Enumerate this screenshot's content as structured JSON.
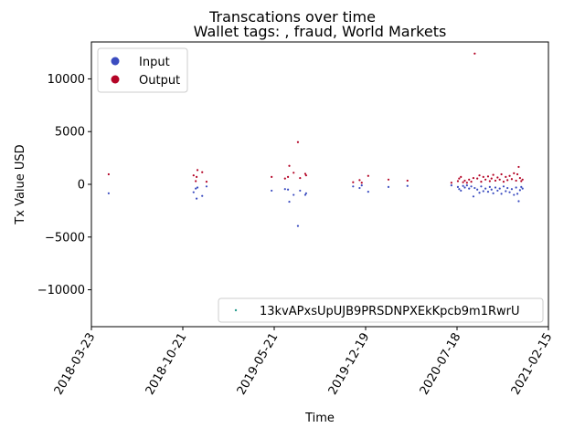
{
  "chart_data": {
    "type": "scatter",
    "suptitle": "Transcations over time",
    "title": "Wallet tags: , fraud, World Markets",
    "xlabel": "Time",
    "ylabel": "Tx Value USD",
    "x_ticks": [
      "2018-03-23",
      "2018-10-21",
      "2019-05-21",
      "2019-12-19",
      "2020-07-18",
      "2021-02-15"
    ],
    "xlim": [
      "2018-03-23",
      "2021-02-15"
    ],
    "ylim": [
      -13500,
      13500
    ],
    "y_ticks": [
      -10000,
      -5000,
      0,
      5000,
      10000
    ],
    "y_tick_labels": [
      "−10000",
      "−5000",
      "0",
      "5000",
      "10000"
    ],
    "legend_main": {
      "position": "upper-left",
      "entries": [
        {
          "label": "Input",
          "color": "#3b4cc0"
        },
        {
          "label": "Output",
          "color": "#b40426"
        }
      ]
    },
    "legend_wallet": {
      "position": "lower-right",
      "label": "13kvAPxsUpUJB9PRSDNPXEkKpcb9m1RwrU",
      "color": "#2a9d8f"
    },
    "series": [
      {
        "name": "Input",
        "color": "#3b4cc0",
        "points": [
          [
            "2018-05-02",
            -850
          ],
          [
            "2018-11-15",
            -750
          ],
          [
            "2018-11-20",
            -400
          ],
          [
            "2018-11-22",
            -1350
          ],
          [
            "2018-11-24",
            -300
          ],
          [
            "2018-12-05",
            -1100
          ],
          [
            "2018-12-15",
            -200
          ],
          [
            "2019-05-15",
            -600
          ],
          [
            "2019-06-15",
            -450
          ],
          [
            "2019-06-22",
            -500
          ],
          [
            "2019-06-25",
            -1650
          ],
          [
            "2019-07-05",
            -1000
          ],
          [
            "2019-07-15",
            -3950
          ],
          [
            "2019-07-20",
            -600
          ],
          [
            "2019-08-01",
            -1000
          ],
          [
            "2019-08-03",
            -850
          ],
          [
            "2019-11-20",
            -200
          ],
          [
            "2019-12-05",
            -350
          ],
          [
            "2019-12-10",
            -100
          ],
          [
            "2019-12-25",
            -700
          ],
          [
            "2020-02-10",
            -250
          ],
          [
            "2020-03-25",
            -150
          ],
          [
            "2020-07-05",
            -100
          ],
          [
            "2020-07-20",
            -250
          ],
          [
            "2020-07-23",
            -450
          ],
          [
            "2020-07-27",
            -600
          ],
          [
            "2020-08-01",
            -150
          ],
          [
            "2020-08-05",
            -300
          ],
          [
            "2020-08-10",
            -100
          ],
          [
            "2020-08-15",
            -400
          ],
          [
            "2020-08-20",
            -200
          ],
          [
            "2020-08-25",
            -1150
          ],
          [
            "2020-08-28",
            -350
          ],
          [
            "2020-09-03",
            -500
          ],
          [
            "2020-09-08",
            -800
          ],
          [
            "2020-09-12",
            -200
          ],
          [
            "2020-09-17",
            -650
          ],
          [
            "2020-09-22",
            -400
          ],
          [
            "2020-09-28",
            -700
          ],
          [
            "2020-10-02",
            -250
          ],
          [
            "2020-10-06",
            -500
          ],
          [
            "2020-10-10",
            -850
          ],
          [
            "2020-10-15",
            -300
          ],
          [
            "2020-10-20",
            -600
          ],
          [
            "2020-10-25",
            -400
          ],
          [
            "2020-10-29",
            -900
          ],
          [
            "2020-11-03",
            -200
          ],
          [
            "2020-11-08",
            -650
          ],
          [
            "2020-11-12",
            -350
          ],
          [
            "2020-11-17",
            -750
          ],
          [
            "2020-11-22",
            -450
          ],
          [
            "2020-11-27",
            -1000
          ],
          [
            "2020-12-02",
            -300
          ],
          [
            "2020-12-05",
            -900
          ],
          [
            "2020-12-08",
            -1600
          ],
          [
            "2020-12-11",
            -550
          ],
          [
            "2020-12-14",
            -250
          ],
          [
            "2020-12-17",
            -400
          ]
        ]
      },
      {
        "name": "Output",
        "color": "#b40426",
        "points": [
          [
            "2018-05-02",
            950
          ],
          [
            "2018-11-15",
            850
          ],
          [
            "2018-11-20",
            300
          ],
          [
            "2018-11-22",
            700
          ],
          [
            "2018-11-24",
            1350
          ],
          [
            "2018-12-05",
            1150
          ],
          [
            "2018-12-15",
            250
          ],
          [
            "2019-05-15",
            700
          ],
          [
            "2019-06-15",
            550
          ],
          [
            "2019-06-22",
            700
          ],
          [
            "2019-06-25",
            1750
          ],
          [
            "2019-07-05",
            1100
          ],
          [
            "2019-07-15",
            4000
          ],
          [
            "2019-07-20",
            600
          ],
          [
            "2019-08-01",
            1000
          ],
          [
            "2019-08-03",
            850
          ],
          [
            "2019-11-20",
            200
          ],
          [
            "2019-12-05",
            400
          ],
          [
            "2019-12-10",
            150
          ],
          [
            "2019-12-25",
            800
          ],
          [
            "2020-02-10",
            450
          ],
          [
            "2020-03-25",
            350
          ],
          [
            "2020-07-05",
            150
          ],
          [
            "2020-07-20",
            300
          ],
          [
            "2020-07-23",
            550
          ],
          [
            "2020-07-27",
            700
          ],
          [
            "2020-08-01",
            200
          ],
          [
            "2020-08-05",
            350
          ],
          [
            "2020-08-10",
            150
          ],
          [
            "2020-08-15",
            450
          ],
          [
            "2020-08-20",
            250
          ],
          [
            "2020-08-25",
            600
          ],
          [
            "2020-08-28",
            12400
          ],
          [
            "2020-09-03",
            550
          ],
          [
            "2020-09-08",
            850
          ],
          [
            "2020-09-12",
            250
          ],
          [
            "2020-09-17",
            700
          ],
          [
            "2020-09-22",
            450
          ],
          [
            "2020-09-28",
            750
          ],
          [
            "2020-10-02",
            300
          ],
          [
            "2020-10-06",
            550
          ],
          [
            "2020-10-10",
            900
          ],
          [
            "2020-10-15",
            350
          ],
          [
            "2020-10-20",
            650
          ],
          [
            "2020-10-25",
            450
          ],
          [
            "2020-10-29",
            950
          ],
          [
            "2020-11-03",
            250
          ],
          [
            "2020-11-08",
            700
          ],
          [
            "2020-11-12",
            400
          ],
          [
            "2020-11-17",
            800
          ],
          [
            "2020-11-22",
            500
          ],
          [
            "2020-11-27",
            1050
          ],
          [
            "2020-12-02",
            350
          ],
          [
            "2020-12-05",
            950
          ],
          [
            "2020-12-08",
            1650
          ],
          [
            "2020-12-11",
            600
          ],
          [
            "2020-12-14",
            300
          ],
          [
            "2020-12-17",
            450
          ]
        ]
      }
    ]
  }
}
